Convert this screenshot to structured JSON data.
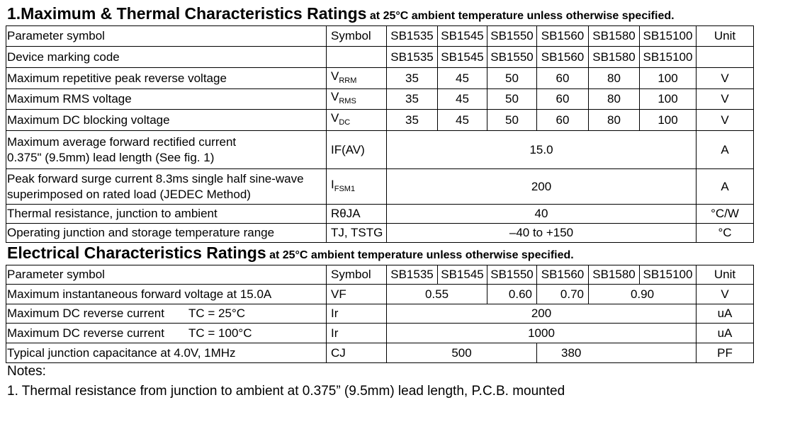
{
  "ratings": {
    "title": "1.Maximum & Thermal Characteristics Ratings",
    "condition": "at 25°C ambient temperature unless otherwise specified.",
    "header": [
      "Parameter symbol",
      "Symbol",
      "SB1535",
      "SB1545",
      "SB1550",
      "SB1560",
      "SB1580",
      "SB15100",
      "Unit"
    ],
    "rows": [
      {
        "parameter": "Device marking code",
        "values": [
          "SB1535",
          "SB1545",
          "SB1550",
          "SB1560",
          "SB1580",
          "SB15100"
        ]
      },
      {
        "parameter": "Maximum repetitive peak reverse voltage",
        "symbol": "V",
        "symbol_sub": "RRM",
        "values": [
          "35",
          "45",
          "50",
          "60",
          "80",
          "100"
        ],
        "unit": "V"
      },
      {
        "parameter": "Maximum RMS voltage",
        "symbol": "V",
        "symbol_sub": "RMS",
        "values": [
          "35",
          "45",
          "50",
          "60",
          "80",
          "100"
        ],
        "unit": "V"
      },
      {
        "parameter": "Maximum DC blocking voltage",
        "symbol": "V",
        "symbol_sub": "DC",
        "values": [
          "35",
          "45",
          "50",
          "60",
          "80",
          "100"
        ],
        "unit": "V"
      },
      {
        "parameter": [
          "Maximum average forward rectified current",
          "0.375\" (9.5mm) lead length (See fig. 1)"
        ],
        "symbol": "IF(AV)",
        "values": [
          "15.0"
        ],
        "unit": "A"
      },
      {
        "parameter": [
          "Peak forward surge current 8.3ms single half sine-wave",
          "superimposed on rated load (JEDEC Method)"
        ],
        "symbol": "I",
        "symbol_sub": "FSM1",
        "values": [
          "200"
        ],
        "unit": "A"
      },
      {
        "parameter": "Thermal resistance, junction to  ambient",
        "symbol": "RθJA",
        "values": [
          "40"
        ],
        "unit": "°C/W"
      },
      {
        "parameter": "Operating junction and storage temperature range",
        "symbol": "TJ, TSTG",
        "values": [
          "–40 to +150"
        ],
        "unit": "°C"
      }
    ]
  },
  "electrical": {
    "title": "Electrical Characteristics Ratings",
    "condition": "at 25°C ambient temperature unless otherwise specified.",
    "header": [
      "Parameter symbol",
      "Symbol",
      "SB1535",
      "SB1545",
      "SB1550",
      "SB1560",
      "SB1580",
      "SB15100",
      "Unit"
    ],
    "rows": [
      {
        "parameter": "Maximum instantaneous forward voltage at 15.0A",
        "symbol": "VF",
        "values": [
          "0.55",
          "0.60",
          "0.70",
          "0.90"
        ],
        "unit": "V"
      },
      {
        "parameter": "Maximum DC reverse current",
        "condition": "TC = 25°C",
        "symbol": "Ir",
        "values": [
          "200"
        ],
        "unit": "uA"
      },
      {
        "parameter": "Maximum DC reverse current",
        "condition": "TC = 100°C",
        "symbol": "Ir",
        "values": [
          "1000"
        ],
        "unit": "uA"
      },
      {
        "parameter": "Typical junction capacitance at 4.0V, 1MHz",
        "symbol": "CJ",
        "values": [
          "500",
          "380"
        ],
        "unit": "PF"
      }
    ]
  },
  "notes": {
    "title": "Notes:",
    "items": [
      "1. Thermal resistance from junction to ambient at 0.375” (9.5mm) lead length, P.C.B. mounted"
    ]
  }
}
